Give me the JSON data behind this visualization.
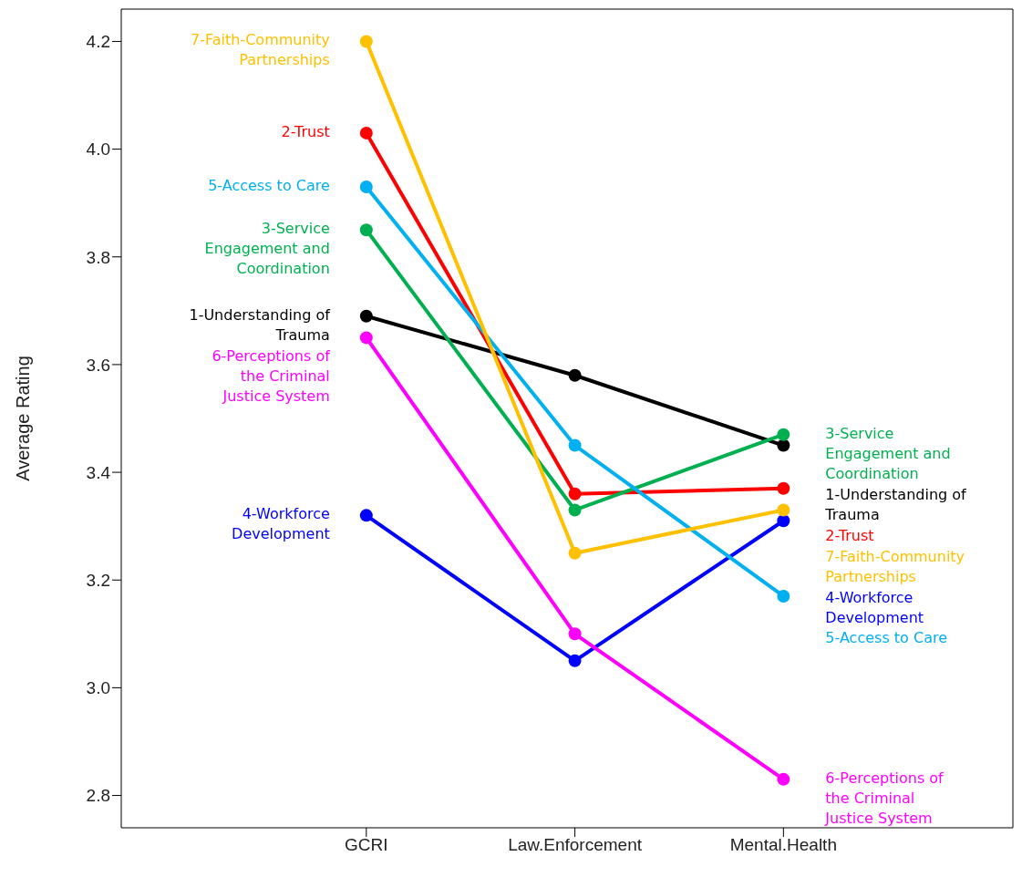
{
  "chart_data": {
    "type": "line",
    "ylabel": "Average Rating",
    "categories": [
      "GCRI",
      "Law.Enforcement",
      "Mental.Health"
    ],
    "ylim": [
      2.74,
      4.26
    ],
    "yticks": [
      {
        "value": 2.8,
        "label": "2.8"
      },
      {
        "value": 3.0,
        "label": "3.0"
      },
      {
        "value": 3.2,
        "label": "3.2"
      },
      {
        "value": 3.4,
        "label": "3.4"
      },
      {
        "value": 3.6,
        "label": "3.6"
      },
      {
        "value": 3.8,
        "label": "3.8"
      },
      {
        "value": 4.0,
        "label": "4.0"
      },
      {
        "value": 4.2,
        "label": "4.2"
      }
    ],
    "marker": "circle",
    "line_style": "solid",
    "series": [
      {
        "name": "1-Understanding of Trauma",
        "color": "#000000",
        "values": [
          3.69,
          3.58,
          3.45
        ]
      },
      {
        "name": "2-Trust",
        "color": "#ff0000",
        "values": [
          4.03,
          3.36,
          3.37
        ]
      },
      {
        "name": "3-Service Engagement and Coordination",
        "color": "#00b050",
        "values": [
          3.85,
          3.33,
          3.47
        ]
      },
      {
        "name": "4-Workforce Development",
        "color": "#0000ff",
        "values": [
          3.32,
          3.05,
          3.31
        ]
      },
      {
        "name": "5-Access to Care",
        "color": "#00b0f0",
        "values": [
          3.93,
          3.45,
          3.17
        ]
      },
      {
        "name": "6-Perceptions of the Criminal Justice System",
        "color": "#ff00ff",
        "values": [
          3.65,
          3.1,
          2.83
        ]
      },
      {
        "name": "7-Faith-Community Partnerships",
        "color": "#ffc000",
        "values": [
          4.2,
          3.25,
          3.33
        ]
      }
    ]
  }
}
